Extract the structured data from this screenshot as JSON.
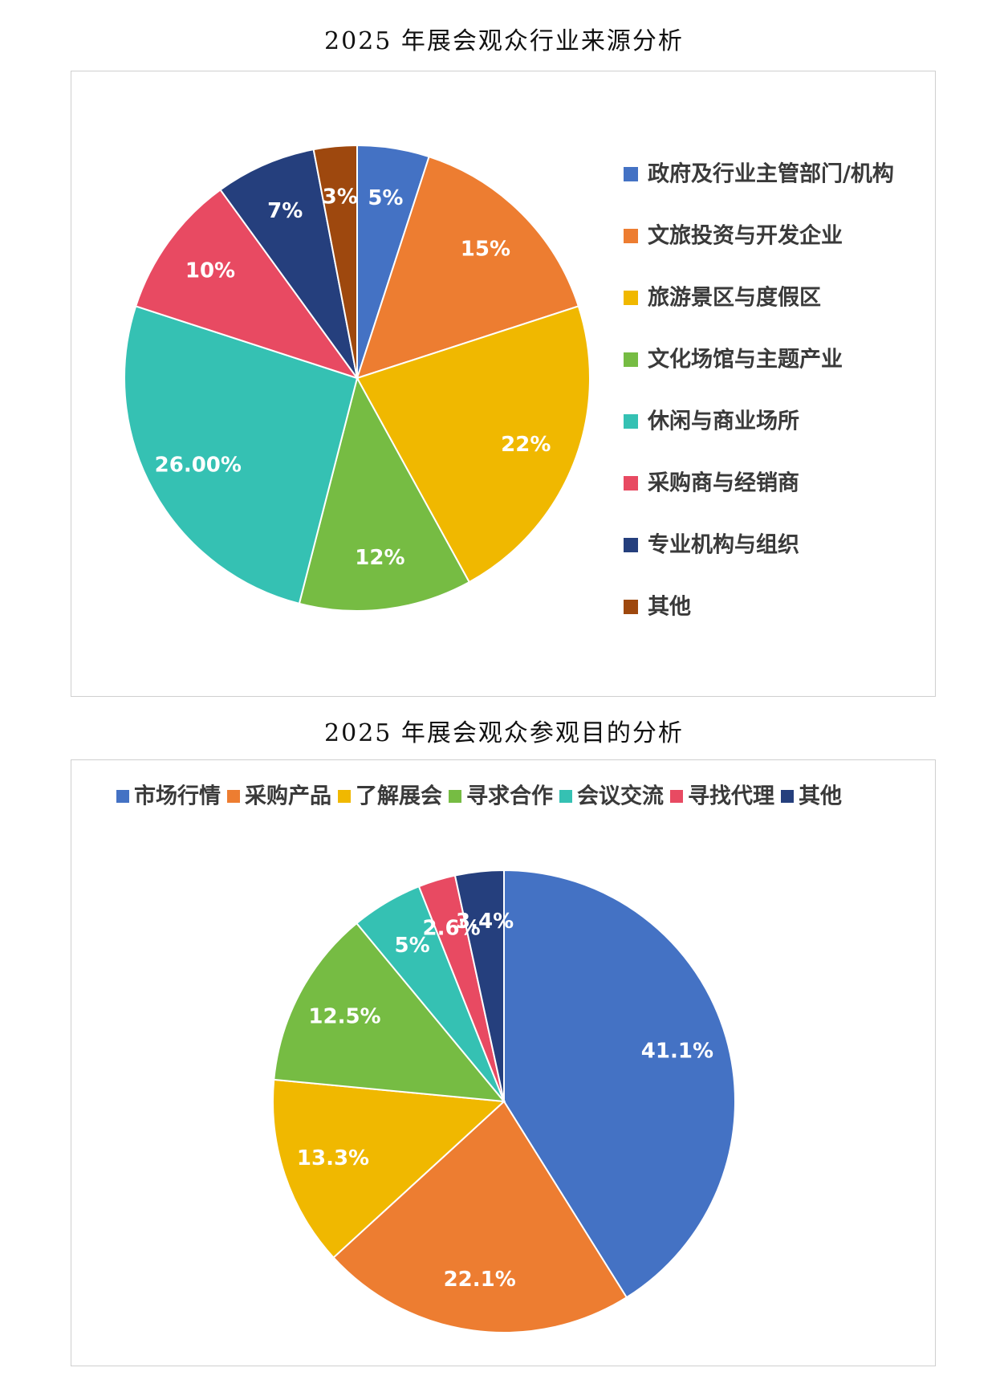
{
  "chart_data": [
    {
      "type": "pie",
      "title": "2025 年展会观众行业来源分析",
      "legend_position": "right",
      "slices": [
        {
          "label": "政府及行业主管部门/机构",
          "value": 5,
          "display": "5%",
          "color": "#4472C4"
        },
        {
          "label": "文旅投资与开发企业",
          "value": 15,
          "display": "15%",
          "color": "#ED7D31"
        },
        {
          "label": "旅游景区与度假区",
          "value": 22,
          "display": "22%",
          "color": "#F0B800"
        },
        {
          "label": "文化场馆与主题产业",
          "value": 12,
          "display": "12%",
          "color": "#76BC43"
        },
        {
          "label": "休闲与商业场所",
          "value": 26,
          "display": "26.00%",
          "color": "#35C1B3"
        },
        {
          "label": "采购商与经销商",
          "value": 10,
          "display": "10%",
          "color": "#E84A62"
        },
        {
          "label": "专业机构与组织",
          "value": 7,
          "display": "7%",
          "color": "#253F7D"
        },
        {
          "label": "其他",
          "value": 3,
          "display": "3%",
          "color": "#9E480E"
        }
      ]
    },
    {
      "type": "pie",
      "title": "2025 年展会观众参观目的分析",
      "legend_position": "top",
      "slices": [
        {
          "label": "市场行情",
          "value": 41.1,
          "display": "41.1%",
          "color": "#4472C4"
        },
        {
          "label": "采购产品",
          "value": 22.1,
          "display": "22.1%",
          "color": "#ED7D31"
        },
        {
          "label": "了解展会",
          "value": 13.3,
          "display": "13.3%",
          "color": "#F0B800"
        },
        {
          "label": "寻求合作",
          "value": 12.5,
          "display": "12.5%",
          "color": "#76BC43"
        },
        {
          "label": "会议交流",
          "value": 5,
          "display": "5%",
          "color": "#35C1B3"
        },
        {
          "label": "寻找代理",
          "value": 2.6,
          "display": "2.6%",
          "color": "#E84A62"
        },
        {
          "label": "其他",
          "value": 3.4,
          "display": "3.4%",
          "color": "#253F7D"
        }
      ]
    }
  ]
}
